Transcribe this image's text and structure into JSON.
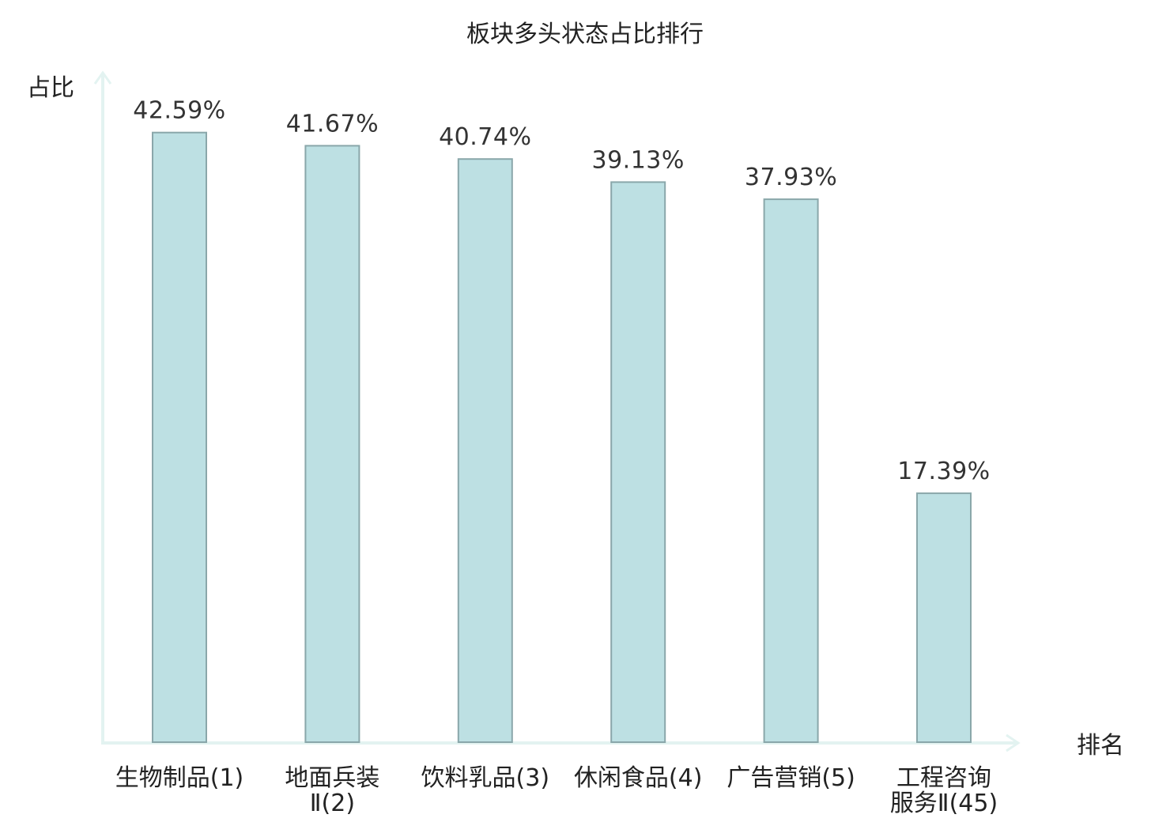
{
  "chart_data": {
    "type": "bar",
    "title": "板块多头状态占比排行",
    "xlabel": "排名",
    "ylabel": "占比",
    "unit": "%",
    "categories": [
      [
        "生物制品(1)"
      ],
      [
        "地面兵装",
        "Ⅱ(2)"
      ],
      [
        "饮料乳品(3)"
      ],
      [
        "休闲食品(4)"
      ],
      [
        "广告营销(5)"
      ],
      [
        "工程咨询",
        "服务Ⅱ(45)"
      ]
    ],
    "values": [
      42.59,
      41.67,
      40.74,
      39.13,
      37.93,
      17.39
    ],
    "value_labels": [
      "42.59%",
      "41.67%",
      "40.74%",
      "39.13%",
      "37.93%",
      "17.39%"
    ],
    "highlight_category_index": 5,
    "ylim": [
      0,
      46.77
    ],
    "grid": false,
    "colors": {
      "bar_fill": "#bde0e3",
      "bar_stroke": "#8aa7aa",
      "axis": "#e3f3f1",
      "highlight_label": "#e0101a",
      "label_text": "#222222",
      "value_text": "#333333"
    }
  }
}
